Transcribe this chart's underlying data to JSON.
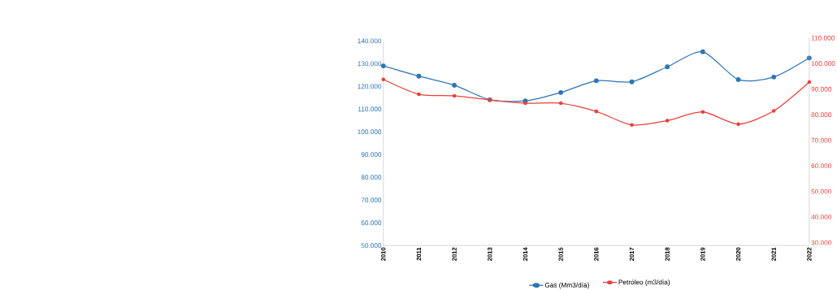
{
  "chart_data": {
    "type": "line",
    "categories": [
      "2010",
      "2011",
      "2012",
      "2013",
      "2014",
      "2015",
      "2016",
      "2017",
      "2018",
      "2019",
      "2020",
      "2021",
      "2022"
    ],
    "series": [
      {
        "name": "Gas (Mm3/día)",
        "color": "#2e75b6",
        "axis": "y",
        "values": [
          129000,
          124500,
          120500,
          114100,
          113600,
          117300,
          122500,
          122000,
          128600,
          135200,
          123000,
          124100,
          132500
        ]
      },
      {
        "name": "Petróleo (m3/día)",
        "color": "#e8413a",
        "axis": "y2",
        "values": [
          93800,
          88000,
          87400,
          85800,
          84500,
          84500,
          81300,
          76000,
          77700,
          81100,
          76300,
          81500,
          92800
        ]
      }
    ],
    "ylim": [
      50000,
      140000
    ],
    "yticks": [
      {
        "value": 50000,
        "label": "50.000"
      },
      {
        "value": 60000,
        "label": "60.000"
      },
      {
        "value": 70000,
        "label": "70.000"
      },
      {
        "value": 80000,
        "label": "80.000"
      },
      {
        "value": 90000,
        "label": "90.000"
      },
      {
        "value": 100000,
        "label": "100.000"
      },
      {
        "value": 110000,
        "label": "110.000"
      },
      {
        "value": 120000,
        "label": "120.000"
      },
      {
        "value": 130000,
        "label": "130.000"
      },
      {
        "value": 140000,
        "label": "140.000"
      }
    ],
    "y2lim": [
      30000,
      110000
    ],
    "y2ticks": [
      {
        "value": 30000,
        "label": "30.000"
      },
      {
        "value": 40000,
        "label": "40.000"
      },
      {
        "value": 50000,
        "label": "50.000"
      },
      {
        "value": 60000,
        "label": "60.000"
      },
      {
        "value": 70000,
        "label": "70.000"
      },
      {
        "value": 80000,
        "label": "80.000"
      },
      {
        "value": 90000,
        "label": "90.000"
      },
      {
        "value": 100000,
        "label": "100.000"
      },
      {
        "value": 110000,
        "label": "110.000"
      }
    ],
    "legend": "bottom",
    "marker": "circle",
    "line_style": "solid"
  }
}
